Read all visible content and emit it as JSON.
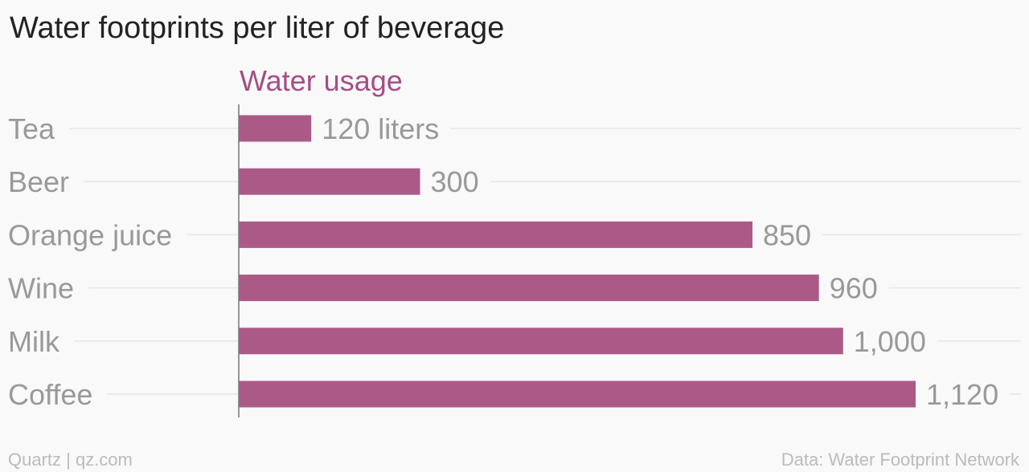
{
  "title": "Water footprints per liter of beverage",
  "footer": {
    "source_left": "Quartz | qz.com",
    "source_right": "Data: Water Footprint Network"
  },
  "colors": {
    "bar": "#ab5a88",
    "series_label": "#a64d86",
    "text_muted": "#999999",
    "gridline": "#e6e6e6",
    "axis": "#777777"
  },
  "chart_data": {
    "type": "bar",
    "orientation": "horizontal",
    "series": [
      {
        "name": "Water usage",
        "values": [
          120,
          300,
          850,
          960,
          1000,
          1120
        ]
      }
    ],
    "categories": [
      "Tea",
      "Beer",
      "Orange juice",
      "Wine",
      "Milk",
      "Coffee"
    ],
    "value_labels": [
      "120 liters",
      "300",
      "850",
      "960",
      "1,000",
      "1,120"
    ],
    "unit": "liters",
    "xlim": [
      0,
      1120
    ],
    "grid": true,
    "legend": "top"
  }
}
